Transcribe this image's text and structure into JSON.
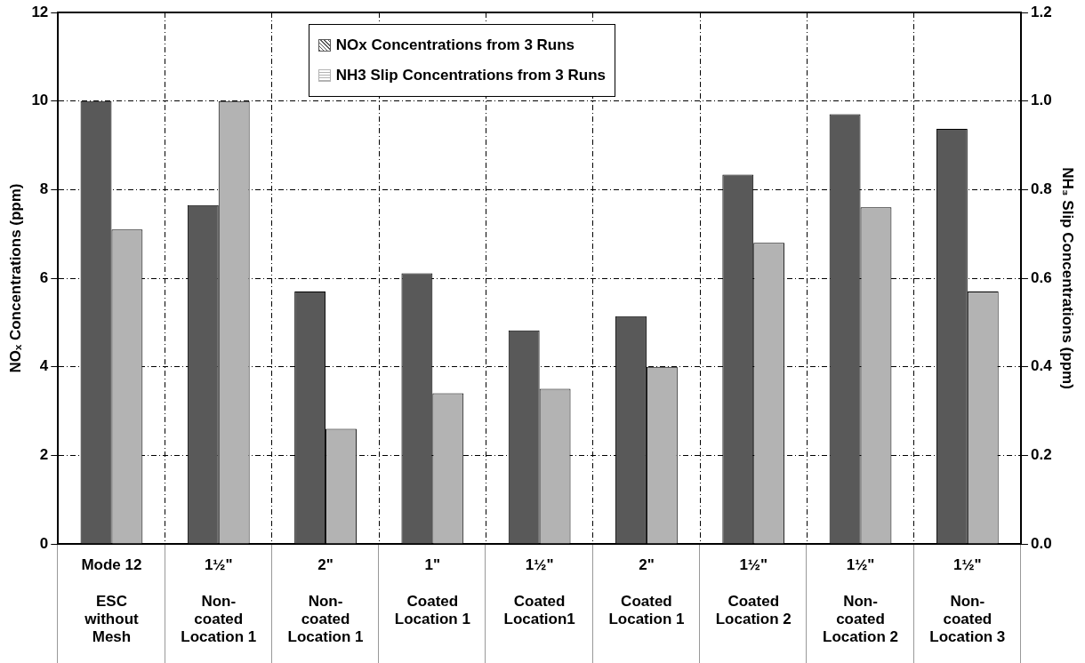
{
  "chart_data": {
    "type": "bar",
    "categories": [
      "Mode 12\n\nESC\nwithout\nMesh",
      "1½\"\n\nNon-\ncoated\nLocation 1",
      "2\"\n\nNon-\ncoated\nLocation 1",
      "1\"\n\nCoated\nLocation 1",
      "1½\"\n\nCoated\nLocation1",
      "2\"\n\nCoated\nLocation 1",
      "1½\"\n\nCoated\nLocation 2",
      "1½\"\n\nNon-\ncoated\nLocation 2",
      "1½\"\n\nNon-\ncoated\nLocation 3"
    ],
    "series": [
      {
        "name": "NOx Concentrations from 3 Runs",
        "color": "#595959",
        "values": [
          10.0,
          7.65,
          5.7,
          6.11,
          4.82,
          5.14,
          8.34,
          9.7,
          9.37
        ]
      },
      {
        "name": "NH3 Slip Concentrations from 3 Runs",
        "color": "#b3b3b3",
        "axis": "y2",
        "values": [
          0.71,
          1.0,
          0.26,
          0.34,
          0.35,
          0.4,
          0.68,
          0.76,
          0.57
        ]
      }
    ],
    "ylabel": "NOₓ Concentrations (ppm)",
    "y2label": "NH₃ Slip Concentrations (ppm)",
    "ylim": [
      0,
      12
    ],
    "yticks": [
      0,
      2,
      4,
      6,
      8,
      10,
      12
    ],
    "y2lim": [
      0,
      1.2
    ],
    "y2ticks": [
      {
        "value": 0,
        "label": "0.0"
      },
      {
        "value": 0.2,
        "label": "0.2"
      },
      {
        "value": 0.4,
        "label": "0.4"
      },
      {
        "value": 0.6,
        "label": "0.6"
      },
      {
        "value": 0.8,
        "label": "0.8"
      },
      {
        "value": 1.0,
        "label": "1.0"
      },
      {
        "value": 1.2,
        "label": "1.2"
      }
    ],
    "grid": true,
    "legend": "top"
  }
}
